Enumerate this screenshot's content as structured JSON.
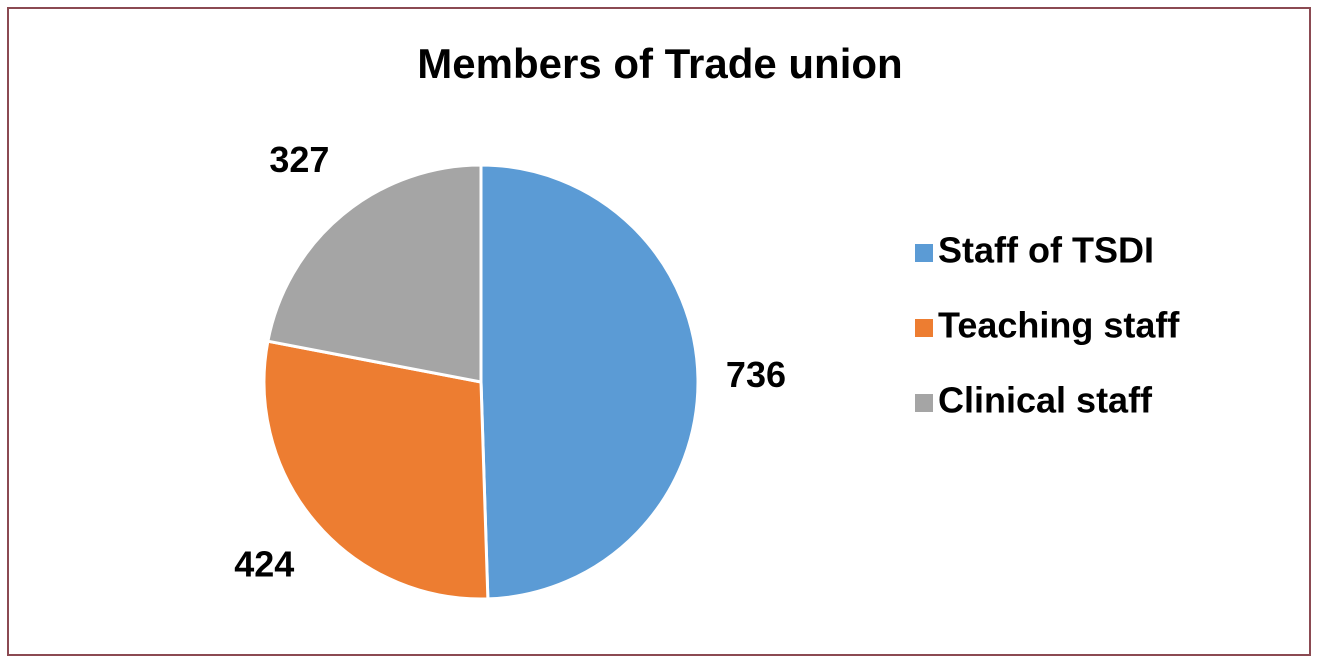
{
  "chart_data": {
    "type": "pie",
    "title": "Members of Trade union",
    "categories": [
      "Staff of TSDI",
      "Teaching staff",
      "Clinical staff"
    ],
    "values": [
      736,
      424,
      327
    ],
    "colors": [
      "#5b9bd5",
      "#ed7d31",
      "#a5a5a5"
    ],
    "legend": "right"
  }
}
